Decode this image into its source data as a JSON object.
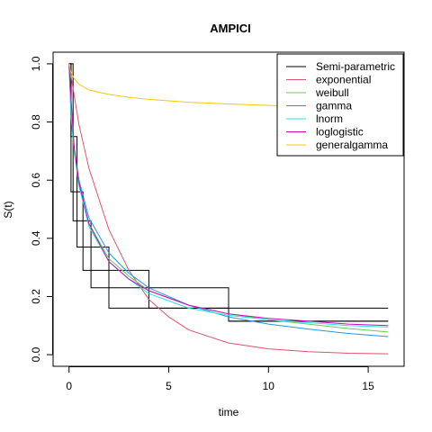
{
  "chart_data": {
    "type": "line",
    "title": "AMPICI",
    "xlabel": "time",
    "ylabel": "S(t)",
    "xlim": [
      -0.8,
      16.8
    ],
    "ylim": [
      -0.04,
      1.04
    ],
    "xticks": [
      0,
      5,
      10,
      15
    ],
    "yticks": [
      0.0,
      0.2,
      0.4,
      0.6,
      0.8,
      1.0
    ],
    "xtick_labels": [
      "0",
      "5",
      "10",
      "15"
    ],
    "ytick_labels": [
      "0.0",
      "0.2",
      "0.4",
      "0.6",
      "0.8",
      "1.0"
    ],
    "grid": false,
    "legend_position": "top-right",
    "step_series": {
      "name": "Semi-parametric",
      "color": "#000000",
      "x": [
        0,
        0.1,
        0.2,
        0.4,
        0.7,
        1.1,
        2.0,
        4.0,
        8.0,
        16.0
      ],
      "y": [
        1.0,
        0.75,
        0.56,
        0.46,
        0.37,
        0.29,
        0.23,
        0.16,
        0.115,
        0.115
      ],
      "upper": [
        1.0,
        1.0,
        0.75,
        0.56,
        0.46,
        0.37,
        0.29,
        0.23,
        0.16,
        0.16
      ],
      "lower": [
        1.0,
        0.56,
        0.46,
        0.37,
        0.29,
        0.23,
        0.16,
        0.16,
        0.115,
        0.115
      ]
    },
    "series": [
      {
        "name": "exponential",
        "color": "#DF536B",
        "x": [
          0,
          0.5,
          1,
          2,
          3,
          4,
          5,
          6,
          8,
          10,
          12,
          14,
          16
        ],
        "y": [
          1.0,
          0.79,
          0.64,
          0.43,
          0.29,
          0.19,
          0.13,
          0.085,
          0.04,
          0.02,
          0.01,
          0.005,
          0.003
        ]
      },
      {
        "name": "weibull",
        "color": "#61D04F",
        "x": [
          0,
          0.1,
          0.25,
          0.5,
          1,
          2,
          3,
          4,
          6,
          8,
          10,
          12,
          14,
          16
        ],
        "y": [
          1.0,
          0.82,
          0.7,
          0.58,
          0.45,
          0.33,
          0.27,
          0.22,
          0.17,
          0.14,
          0.12,
          0.105,
          0.09,
          0.078
        ]
      },
      {
        "name": "gamma",
        "color": "#2297E6",
        "x": [
          0,
          0.1,
          0.25,
          0.5,
          1,
          2,
          3,
          4,
          6,
          8,
          10,
          12,
          14,
          16
        ],
        "y": [
          1.0,
          0.83,
          0.71,
          0.6,
          0.47,
          0.35,
          0.28,
          0.23,
          0.17,
          0.13,
          0.105,
          0.088,
          0.073,
          0.062
        ]
      },
      {
        "name": "lnorm",
        "color": "#28E2E5",
        "x": [
          0,
          0.1,
          0.25,
          0.5,
          1,
          2,
          3,
          4,
          6,
          8,
          10,
          12,
          14,
          16
        ],
        "y": [
          1.0,
          0.85,
          0.71,
          0.58,
          0.44,
          0.32,
          0.26,
          0.21,
          0.16,
          0.135,
          0.12,
          0.11,
          0.1,
          0.095
        ]
      },
      {
        "name": "loglogistic",
        "color": "#CD0BBC",
        "x": [
          0,
          0.1,
          0.25,
          0.5,
          1,
          2,
          3,
          4,
          6,
          8,
          10,
          12,
          14,
          16
        ],
        "y": [
          1.0,
          0.88,
          0.72,
          0.59,
          0.45,
          0.32,
          0.26,
          0.22,
          0.17,
          0.14,
          0.125,
          0.115,
          0.105,
          0.1
        ]
      },
      {
        "name": "generalgamma",
        "color": "#F5C710",
        "x": [
          0,
          0.1,
          0.25,
          0.5,
          1,
          2,
          3,
          4,
          6,
          8,
          10,
          12,
          14,
          16
        ],
        "y": [
          1.0,
          0.97,
          0.95,
          0.93,
          0.91,
          0.895,
          0.885,
          0.878,
          0.868,
          0.862,
          0.857,
          0.853,
          0.85,
          0.847
        ]
      }
    ]
  },
  "legend": {
    "items": [
      {
        "label": "Semi-parametric",
        "color": "#000000"
      },
      {
        "label": "exponential",
        "color": "#DF536B"
      },
      {
        "label": "weibull",
        "color": "#61D04F"
      },
      {
        "label": "gamma",
        "color": "#2297E6"
      },
      {
        "label": "lnorm",
        "color": "#28E2E5"
      },
      {
        "label": "loglogistic",
        "color": "#CD0BBC"
      },
      {
        "label": "generalgamma",
        "color": "#F5C710"
      }
    ]
  }
}
